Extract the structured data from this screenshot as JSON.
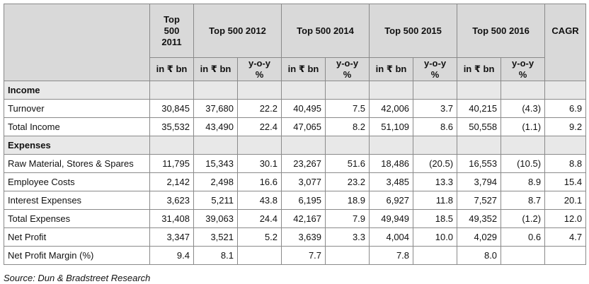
{
  "table": {
    "header": {
      "years": [
        {
          "label": "Top 500 2011",
          "lines": [
            "Top",
            "500",
            "2011"
          ]
        },
        {
          "label": "Top 500 2012"
        },
        {
          "label": "Top 500 2014"
        },
        {
          "label": "Top 500 2015"
        },
        {
          "label": "Top 500 2016"
        },
        {
          "label": "CAGR"
        }
      ],
      "unit": "in ₹ bn",
      "yoy_line1": "y-o-y",
      "yoy_line2": "%"
    },
    "sections": [
      {
        "title": "Income",
        "rows": [
          {
            "label": "Turnover",
            "cells": [
              "30,845",
              "37,680",
              "22.2",
              "40,495",
              "7.5",
              "42,006",
              "3.7",
              "40,215",
              "(4.3)",
              "6.9"
            ]
          },
          {
            "label": "Total Income",
            "cells": [
              "35,532",
              "43,490",
              "22.4",
              "47,065",
              "8.2",
              "51,109",
              "8.6",
              "50,558",
              "(1.1)",
              "9.2"
            ]
          }
        ]
      },
      {
        "title": "Expenses",
        "rows": [
          {
            "label": "Raw Material, Stores & Spares",
            "cells": [
              "11,795",
              "15,343",
              "30.1",
              "23,267",
              "51.6",
              "18,486",
              "(20.5)",
              "16,553",
              "(10.5)",
              "8.8"
            ]
          },
          {
            "label": "Employee Costs",
            "cells": [
              "2,142",
              "2,498",
              "16.6",
              "3,077",
              "23.2",
              "3,485",
              "13.3",
              "3,794",
              "8.9",
              "15.4"
            ]
          },
          {
            "label": "Interest Expenses",
            "cells": [
              "3,623",
              "5,211",
              "43.8",
              "6,195",
              "18.9",
              "6,927",
              "11.8",
              "7,527",
              "8.7",
              "20.1"
            ]
          },
          {
            "label": "Total Expenses",
            "cells": [
              "31,408",
              "39,063",
              "24.4",
              "42,167",
              "7.9",
              "49,949",
              "18.5",
              "49,352",
              "(1.2)",
              "12.0"
            ]
          },
          {
            "label": "Net Profit",
            "cells": [
              "3,347",
              "3,521",
              "5.2",
              "3,639",
              "3.3",
              "4,004",
              "10.0",
              "4,029",
              "0.6",
              "4.7"
            ]
          },
          {
            "label": "Net Profit Margin (%)",
            "cells": [
              "9.4",
              "8.1",
              "",
              "7.7",
              "",
              "7.8",
              "",
              "8.0",
              "",
              ""
            ]
          }
        ]
      }
    ]
  },
  "source": "Source: Dun & Bradstreet Research"
}
